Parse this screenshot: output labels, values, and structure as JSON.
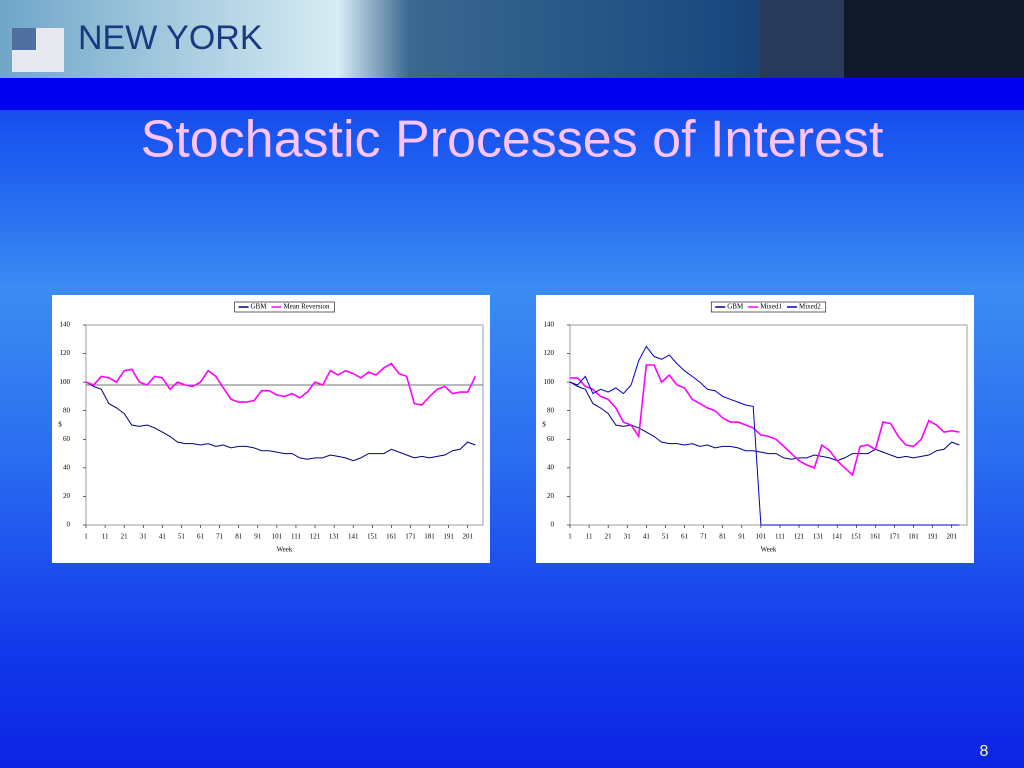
{
  "slide": {
    "banner_text": "NEW YORK",
    "title": "Stochastic Processes of Interest",
    "page_number": "8"
  },
  "chart_data": [
    {
      "type": "line",
      "xlabel": "Week",
      "ylabel": "$",
      "xlim": [
        1,
        209
      ],
      "ylim": [
        0,
        140
      ],
      "xticks": [
        1,
        11,
        21,
        31,
        41,
        51,
        61,
        71,
        81,
        91,
        101,
        111,
        121,
        131,
        141,
        151,
        161,
        171,
        181,
        191,
        201
      ],
      "yticks": [
        0,
        20,
        40,
        60,
        80,
        100,
        120,
        140
      ],
      "hline": 98,
      "legend": "top",
      "x": [
        1,
        5,
        9,
        13,
        17,
        21,
        25,
        29,
        33,
        37,
        41,
        45,
        49,
        53,
        57,
        61,
        65,
        69,
        73,
        77,
        81,
        85,
        89,
        93,
        97,
        101,
        105,
        109,
        113,
        117,
        121,
        125,
        129,
        133,
        137,
        141,
        145,
        149,
        153,
        157,
        161,
        165,
        169,
        173,
        177,
        181,
        185,
        189,
        193,
        197,
        201,
        205
      ],
      "series": [
        {
          "name": "GBM",
          "color": "#000080",
          "values": [
            100,
            97,
            95,
            85,
            82,
            78,
            70,
            69,
            70,
            68,
            65,
            62,
            58,
            57,
            57,
            56,
            57,
            55,
            56,
            54,
            55,
            55,
            54,
            52,
            52,
            51,
            50,
            50,
            47,
            46,
            47,
            47,
            49,
            48,
            47,
            45,
            47,
            50,
            50,
            50,
            53,
            51,
            49,
            47,
            48,
            47,
            48,
            49,
            52,
            53,
            58,
            56
          ]
        },
        {
          "name": "Mean Reversion",
          "color": "#ff00ff",
          "values": [
            100,
            98,
            104,
            103,
            100,
            108,
            109,
            100,
            98,
            104,
            103,
            95,
            100,
            98,
            97,
            100,
            108,
            104,
            96,
            88,
            86,
            86,
            87,
            94,
            94,
            91,
            90,
            92,
            89,
            93,
            100,
            98,
            108,
            105,
            108,
            106,
            103,
            107,
            105,
            110,
            113,
            106,
            104,
            85,
            84,
            90,
            95,
            97,
            92,
            93,
            93,
            104
          ]
        }
      ]
    },
    {
      "type": "line",
      "xlabel": "Week",
      "ylabel": "$",
      "xlim": [
        1,
        209
      ],
      "ylim": [
        0,
        140
      ],
      "xticks": [
        1,
        11,
        21,
        31,
        41,
        51,
        61,
        71,
        81,
        91,
        101,
        111,
        121,
        131,
        141,
        151,
        161,
        171,
        181,
        191,
        201
      ],
      "yticks": [
        0,
        20,
        40,
        60,
        80,
        100,
        120,
        140
      ],
      "legend": "top",
      "x": [
        1,
        5,
        9,
        13,
        17,
        21,
        25,
        29,
        33,
        37,
        41,
        45,
        49,
        53,
        57,
        61,
        65,
        69,
        73,
        77,
        81,
        85,
        89,
        93,
        97,
        101,
        105,
        109,
        113,
        117,
        121,
        125,
        129,
        133,
        137,
        141,
        145,
        149,
        153,
        157,
        161,
        165,
        169,
        173,
        177,
        181,
        185,
        189,
        193,
        197,
        201,
        205
      ],
      "series": [
        {
          "name": "GBM",
          "color": "#000080",
          "values": [
            100,
            97,
            95,
            85,
            82,
            78,
            70,
            69,
            70,
            68,
            65,
            62,
            58,
            57,
            57,
            56,
            57,
            55,
            56,
            54,
            55,
            55,
            54,
            52,
            52,
            51,
            50,
            50,
            47,
            46,
            47,
            47,
            49,
            48,
            47,
            45,
            47,
            50,
            50,
            50,
            53,
            51,
            49,
            47,
            48,
            47,
            48,
            49,
            52,
            53,
            58,
            56
          ]
        },
        {
          "name": "Mixed1",
          "color": "#ff00ff",
          "values": [
            103,
            103,
            97,
            95,
            90,
            88,
            82,
            72,
            70,
            62,
            112,
            112,
            100,
            105,
            98,
            96,
            88,
            85,
            82,
            80,
            75,
            72,
            72,
            70,
            68,
            63,
            62,
            60,
            55,
            50,
            45,
            42,
            40,
            56,
            52,
            45,
            40,
            35,
            55,
            56,
            53,
            72,
            71,
            62,
            56,
            55,
            60,
            73,
            70,
            65,
            66,
            65
          ]
        },
        {
          "name": "Mixed2",
          "color": "#0000cc",
          "values": [
            100,
            98,
            104,
            92,
            95,
            93,
            96,
            92,
            98,
            115,
            125,
            118,
            116,
            119,
            113,
            108,
            104,
            100,
            95,
            94,
            90,
            88,
            86,
            84,
            83,
            0,
            0,
            0,
            0,
            0,
            0,
            0,
            0,
            0,
            0,
            0,
            0,
            0,
            0,
            0,
            0,
            0,
            0,
            0,
            0,
            0,
            0,
            0,
            0,
            0,
            0,
            0
          ]
        }
      ]
    }
  ]
}
